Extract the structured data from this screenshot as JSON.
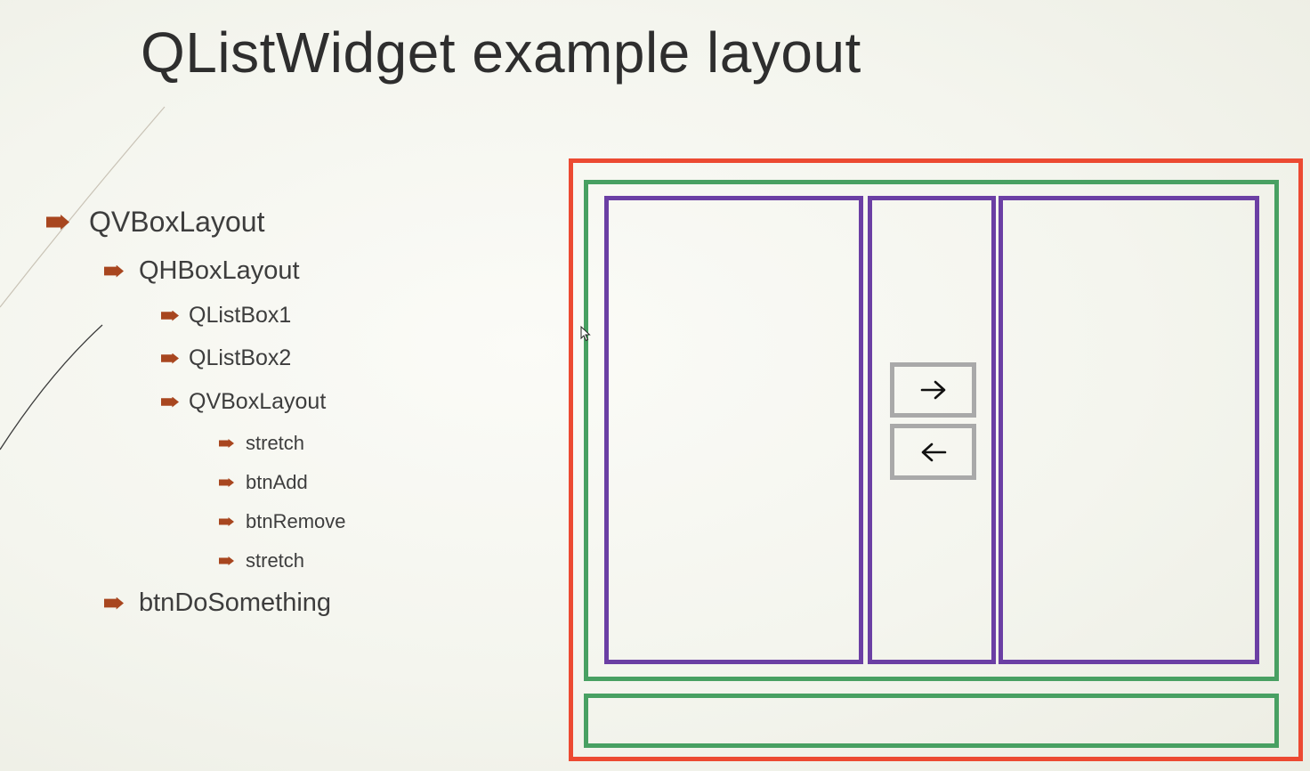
{
  "title": "QListWidget example layout",
  "outline": [
    {
      "label": "QVBoxLayout",
      "level": 1
    },
    {
      "label": "QHBoxLayout",
      "level": 2
    },
    {
      "label": "QListBox1",
      "level": 3
    },
    {
      "label": "QListBox2",
      "level": 3
    },
    {
      "label": "QVBoxLayout",
      "level": 3
    },
    {
      "label": "stretch",
      "level": 4
    },
    {
      "label": "btnAdd",
      "level": 4
    },
    {
      "label": "btnRemove",
      "level": 4
    },
    {
      "label": "stretch",
      "level": 4
    },
    {
      "label": "btnDoSomething",
      "level": 2
    }
  ],
  "colors": {
    "window_border": "#ec4a32",
    "layout_border": "#48a062",
    "listbox_border": "#6b3fa4",
    "button_border": "#a9a9a9",
    "bullet": "#a8461f"
  },
  "icons": {
    "add_button": "arrow-right-icon",
    "remove_button": "arrow-left-icon"
  }
}
